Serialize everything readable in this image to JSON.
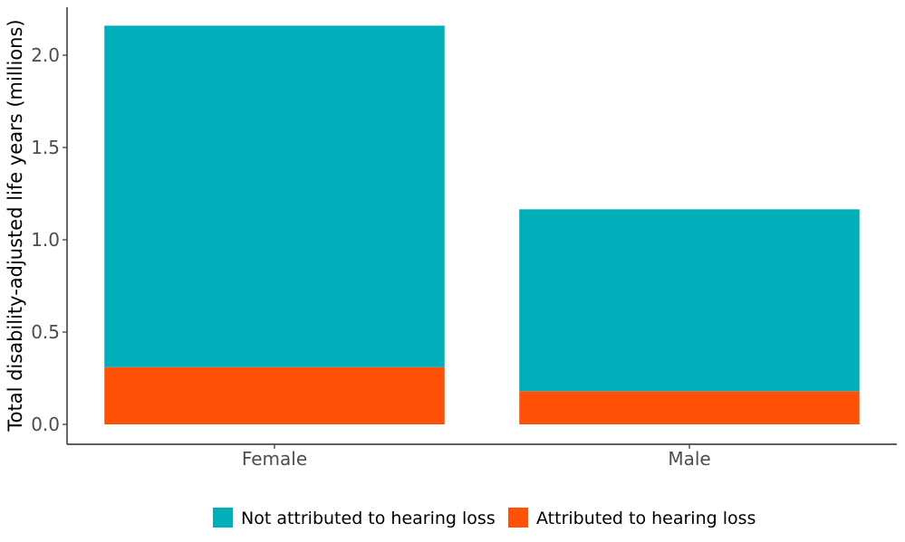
{
  "chart_data": {
    "type": "bar",
    "stacked": true,
    "categories": [
      "Female",
      "Male"
    ],
    "series": [
      {
        "name": "Attributed to hearing loss",
        "color": "#FF5107",
        "values": [
          0.31,
          0.18
        ]
      },
      {
        "name": "Not attributed to hearing loss",
        "color": "#03AEBB",
        "values": [
          1.85,
          0.985
        ]
      }
    ],
    "ylabel": "Total disability-adjusted life years (millions)",
    "xlabel": "",
    "ylim": [
      0,
      2.16
    ],
    "yticks": [
      "0.0",
      "0.5",
      "1.0",
      "1.5",
      "2.0"
    ],
    "grid": false,
    "legend_position": "bottom",
    "legend_order": [
      "Not attributed to hearing loss",
      "Attributed to hearing loss"
    ]
  }
}
